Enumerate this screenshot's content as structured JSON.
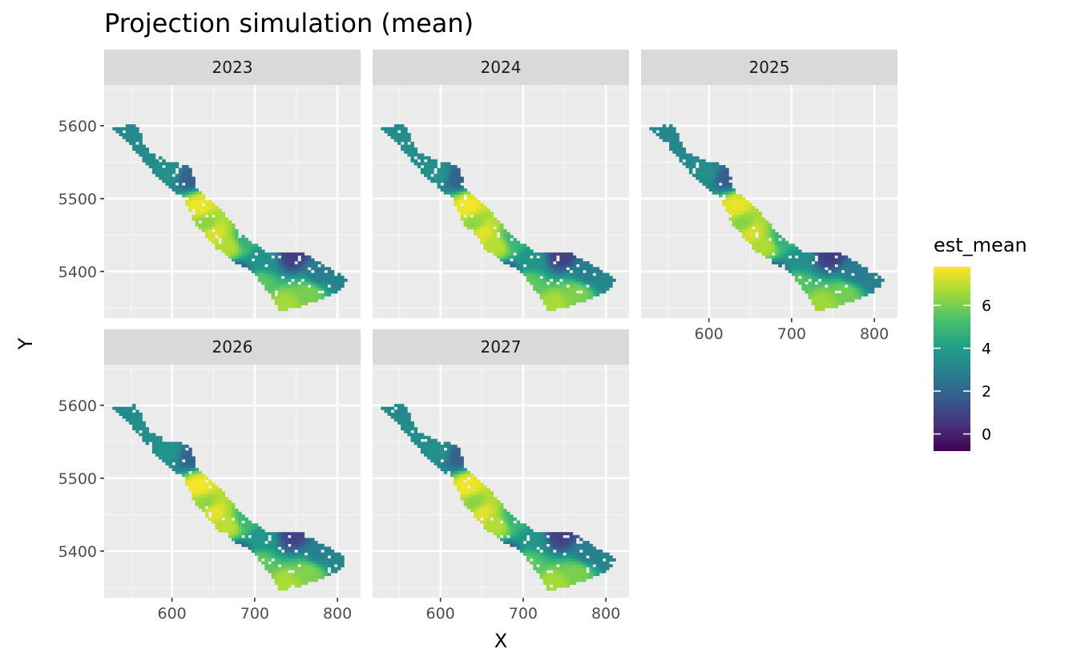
{
  "chart_data": {
    "type": "heatmap",
    "title": "Projection simulation (mean)",
    "xlabel": "X",
    "ylabel": "Y",
    "xlim": [
      518,
      828
    ],
    "ylim": [
      5336,
      5656
    ],
    "x_ticks": [
      600,
      700,
      800
    ],
    "y_ticks": [
      5400,
      5500,
      5600
    ],
    "facets": [
      "2023",
      "2024",
      "2025",
      "2026",
      "2027"
    ],
    "facet_variation": [
      0.0,
      0.08,
      -0.06,
      0.12,
      0.04
    ],
    "fill": {
      "name": "est_mean",
      "range": [
        -0.8,
        7.8
      ],
      "breaks": [
        0,
        2,
        4,
        6
      ],
      "palette": [
        "#440154",
        "#46327e",
        "#365c8d",
        "#277f8e",
        "#1fa187",
        "#4ac16d",
        "#a0da39",
        "#fde725"
      ]
    },
    "domain_outline": [
      [
        527,
        5597
      ],
      [
        556,
        5602
      ],
      [
        572,
        5565
      ],
      [
        597,
        5552
      ],
      [
        621,
        5545
      ],
      [
        630,
        5515
      ],
      [
        663,
        5480
      ],
      [
        684,
        5450
      ],
      [
        718,
        5425
      ],
      [
        755,
        5428
      ],
      [
        790,
        5405
      ],
      [
        813,
        5388
      ],
      [
        800,
        5372
      ],
      [
        775,
        5360
      ],
      [
        750,
        5350
      ],
      [
        730,
        5345
      ],
      [
        718,
        5370
      ],
      [
        698,
        5400
      ],
      [
        680,
        5410
      ],
      [
        655,
        5430
      ],
      [
        628,
        5465
      ],
      [
        615,
        5500
      ],
      [
        585,
        5525
      ],
      [
        545,
        5580
      ]
    ],
    "field_anchors": [
      {
        "x": 533,
        "y": 5595,
        "value": 3.2
      },
      {
        "x": 575,
        "y": 5565,
        "value": 3.3
      },
      {
        "x": 600,
        "y": 5535,
        "value": 3.5
      },
      {
        "x": 620,
        "y": 5530,
        "value": 1.8
      },
      {
        "x": 633,
        "y": 5490,
        "value": 7.6
      },
      {
        "x": 650,
        "y": 5455,
        "value": 7.4
      },
      {
        "x": 642,
        "y": 5465,
        "value": 6.2
      },
      {
        "x": 668,
        "y": 5435,
        "value": 6.8
      },
      {
        "x": 690,
        "y": 5445,
        "value": 4.8
      },
      {
        "x": 712,
        "y": 5418,
        "value": 3.6
      },
      {
        "x": 745,
        "y": 5422,
        "value": 0.8
      },
      {
        "x": 778,
        "y": 5398,
        "value": 2.8
      },
      {
        "x": 805,
        "y": 5388,
        "value": 3.0
      },
      {
        "x": 738,
        "y": 5355,
        "value": 6.6
      },
      {
        "x": 765,
        "y": 5370,
        "value": 6.0
      },
      {
        "x": 705,
        "y": 5385,
        "value": 5.6
      },
      {
        "x": 680,
        "y": 5395,
        "value": 1.2
      }
    ]
  }
}
